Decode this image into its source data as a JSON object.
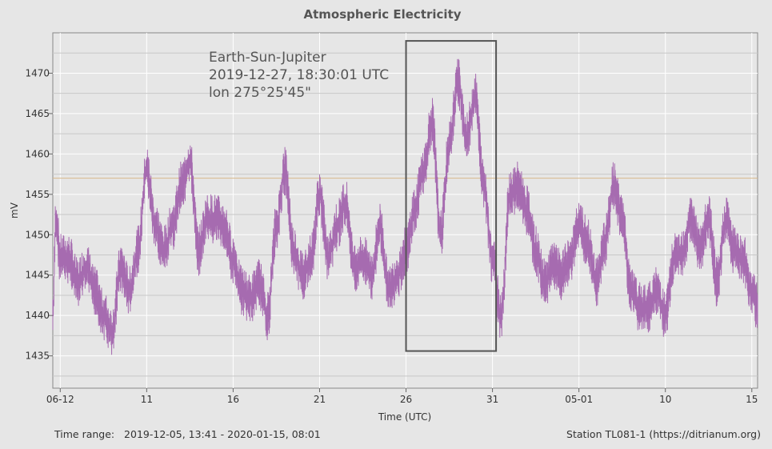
{
  "chart_data": {
    "type": "line",
    "title": "Atmospheric Electricity",
    "xlabel": "Time (UTC)",
    "ylabel": "mV",
    "x_ticks": [
      "06-12",
      "11",
      "16",
      "21",
      "26",
      "31",
      "05-01",
      "10",
      "15"
    ],
    "y_ticks": [
      1435,
      1440,
      1445,
      1450,
      1455,
      1460,
      1465,
      1470
    ],
    "ylim": [
      1431,
      1475
    ],
    "xlim": [
      "2019-12-05 13:41",
      "2020-01-15 08:01"
    ],
    "reference_line": 1457,
    "highlight_box": {
      "x_start": "2019-12-26 00:00",
      "x_end": "2019-12-31 05:00",
      "y_bottom": 1435.6,
      "y_top": 1474
    },
    "grid": true,
    "series": [
      {
        "color": "#a66bb0",
        "x": [
          "2019-12-05 13:41",
          "2019-12-05 18:00",
          "2019-12-06 00:00",
          "2019-12-06 12:00",
          "2019-12-07 00:00",
          "2019-12-07 12:00",
          "2019-12-08 00:00",
          "2019-12-08 12:00",
          "2019-12-09 00:00",
          "2019-12-09 12:00",
          "2019-12-10 00:00",
          "2019-12-10 12:00",
          "2019-12-11 00:00",
          "2019-12-11 12:00",
          "2019-12-12 00:00",
          "2019-12-12 12:00",
          "2019-12-13 00:00",
          "2019-12-13 12:00",
          "2019-12-14 00:00",
          "2019-12-14 12:00",
          "2019-12-15 00:00",
          "2019-12-15 12:00",
          "2019-12-16 00:00",
          "2019-12-16 12:00",
          "2019-12-17 00:00",
          "2019-12-17 12:00",
          "2019-12-18 00:00",
          "2019-12-18 12:00",
          "2019-12-19 00:00",
          "2019-12-19 12:00",
          "2019-12-20 00:00",
          "2019-12-20 12:00",
          "2019-12-21 00:00",
          "2019-12-21 12:00",
          "2019-12-22 00:00",
          "2019-12-22 12:00",
          "2019-12-23 00:00",
          "2019-12-23 12:00",
          "2019-12-24 00:00",
          "2019-12-24 12:00",
          "2019-12-25 00:00",
          "2019-12-25 12:00",
          "2019-12-26 00:00",
          "2019-12-26 12:00",
          "2019-12-27 00:00",
          "2019-12-27 12:00",
          "2019-12-28 00:00",
          "2019-12-28 12:00",
          "2019-12-29 00:00",
          "2019-12-29 12:00",
          "2019-12-30 00:00",
          "2019-12-30 12:00",
          "2019-12-31 00:00",
          "2019-12-31 12:00",
          "2020-01-01 00:00",
          "2020-01-01 12:00",
          "2020-01-02 00:00",
          "2020-01-02 12:00",
          "2020-01-03 00:00",
          "2020-01-03 12:00",
          "2020-01-04 00:00",
          "2020-01-04 12:00",
          "2020-01-05 00:00",
          "2020-01-05 12:00",
          "2020-01-06 00:00",
          "2020-01-06 12:00",
          "2020-01-07 00:00",
          "2020-01-07 12:00",
          "2020-01-08 00:00",
          "2020-01-08 12:00",
          "2020-01-09 00:00",
          "2020-01-09 12:00",
          "2020-01-10 00:00",
          "2020-01-10 12:00",
          "2020-01-11 00:00",
          "2020-01-11 12:00",
          "2020-01-12 00:00",
          "2020-01-12 12:00",
          "2020-01-13 00:00",
          "2020-01-13 12:00",
          "2020-01-14 00:00",
          "2020-01-14 12:00",
          "2020-01-15 00:00",
          "2020-01-15 08:01"
        ],
        "y": [
          1440,
          1452,
          1447,
          1447,
          1444,
          1446,
          1443,
          1440,
          1438,
          1446,
          1443,
          1448,
          1458,
          1451,
          1448,
          1451,
          1456,
          1459,
          1448,
          1452,
          1452,
          1451,
          1447,
          1443,
          1442,
          1444,
          1440,
          1451,
          1458,
          1448,
          1445,
          1447,
          1455,
          1447,
          1451,
          1454,
          1446,
          1447,
          1445,
          1451,
          1443,
          1445,
          1448,
          1453,
          1458,
          1464,
          1450,
          1461,
          1469,
          1462,
          1467,
          1456,
          1447,
          1440,
          1455,
          1456,
          1453,
          1448,
          1444,
          1446,
          1445,
          1447,
          1451,
          1449,
          1444,
          1449,
          1456,
          1452,
          1443,
          1441,
          1441,
          1443,
          1440,
          1447,
          1448,
          1452,
          1448,
          1452,
          1444,
          1452,
          1448,
          1447,
          1443,
          1441
        ]
      }
    ]
  },
  "annotation": {
    "line1": "Earth-Sun-Jupiter",
    "line2": "2019-12-27, 18:30:01 UTC",
    "line3": "lon 275°25'45\""
  },
  "footer": {
    "time_range_label": "Time range:",
    "time_range_value": "2019-12-05, 13:41 - 2020-01-15, 08:01",
    "station": "Station TL081-1 (https://ditrianum.org)"
  }
}
